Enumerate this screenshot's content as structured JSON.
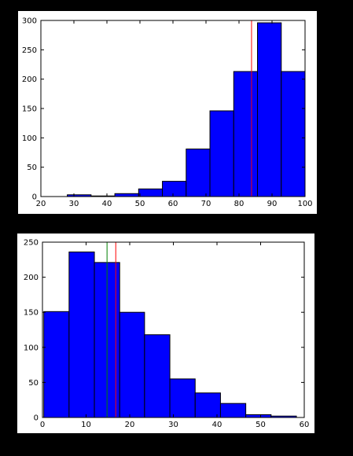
{
  "colors": {
    "background": "#000000",
    "figure": "#ffffff",
    "bar_fill": "#0000ff",
    "bar_edge": "#000000",
    "mean_line": "#ff0000",
    "median_line": "#008000"
  },
  "chart_data": [
    {
      "type": "bar",
      "title": "",
      "xlabel": "",
      "ylabel": "",
      "xlim": [
        20,
        100
      ],
      "ylim": [
        0,
        300
      ],
      "xticks": [
        20,
        30,
        40,
        50,
        60,
        70,
        80,
        90,
        100
      ],
      "yticks": [
        0,
        50,
        100,
        150,
        200,
        250,
        300
      ],
      "bins": [
        {
          "x0": 28.0,
          "x1": 35.2,
          "value": 3
        },
        {
          "x0": 35.2,
          "x1": 42.4,
          "value": 1
        },
        {
          "x0": 42.4,
          "x1": 49.6,
          "value": 5
        },
        {
          "x0": 49.6,
          "x1": 56.8,
          "value": 13
        },
        {
          "x0": 56.8,
          "x1": 64.0,
          "value": 26
        },
        {
          "x0": 64.0,
          "x1": 71.2,
          "value": 81
        },
        {
          "x0": 71.2,
          "x1": 78.4,
          "value": 146
        },
        {
          "x0": 78.4,
          "x1": 85.6,
          "value": 213
        },
        {
          "x0": 85.6,
          "x1": 92.8,
          "value": 296
        },
        {
          "x0": 92.8,
          "x1": 100.0,
          "value": 213
        }
      ],
      "vlines": [
        {
          "x": 83.8,
          "color": "#ff0000"
        }
      ],
      "grid": false,
      "legend": "none"
    },
    {
      "type": "bar",
      "title": "",
      "xlabel": "",
      "ylabel": "",
      "xlim": [
        0,
        60
      ],
      "ylim": [
        0,
        250
      ],
      "xticks": [
        0,
        10,
        20,
        30,
        40,
        50,
        60
      ],
      "yticks": [
        0,
        50,
        100,
        150,
        200,
        250
      ],
      "bins": [
        {
          "x0": 0.3,
          "x1": 6.1,
          "value": 151
        },
        {
          "x0": 6.1,
          "x1": 11.9,
          "value": 236
        },
        {
          "x0": 11.9,
          "x1": 17.7,
          "value": 221
        },
        {
          "x0": 17.7,
          "x1": 23.4,
          "value": 150
        },
        {
          "x0": 23.4,
          "x1": 29.2,
          "value": 118
        },
        {
          "x0": 29.2,
          "x1": 35.0,
          "value": 55
        },
        {
          "x0": 35.0,
          "x1": 40.8,
          "value": 35
        },
        {
          "x0": 40.8,
          "x1": 46.6,
          "value": 20
        },
        {
          "x0": 46.6,
          "x1": 52.4,
          "value": 4
        },
        {
          "x0": 52.4,
          "x1": 58.2,
          "value": 2
        }
      ],
      "vlines": [
        {
          "x": 14.8,
          "color": "#008000"
        },
        {
          "x": 16.8,
          "color": "#ff0000"
        }
      ],
      "grid": false,
      "legend": "none"
    }
  ]
}
